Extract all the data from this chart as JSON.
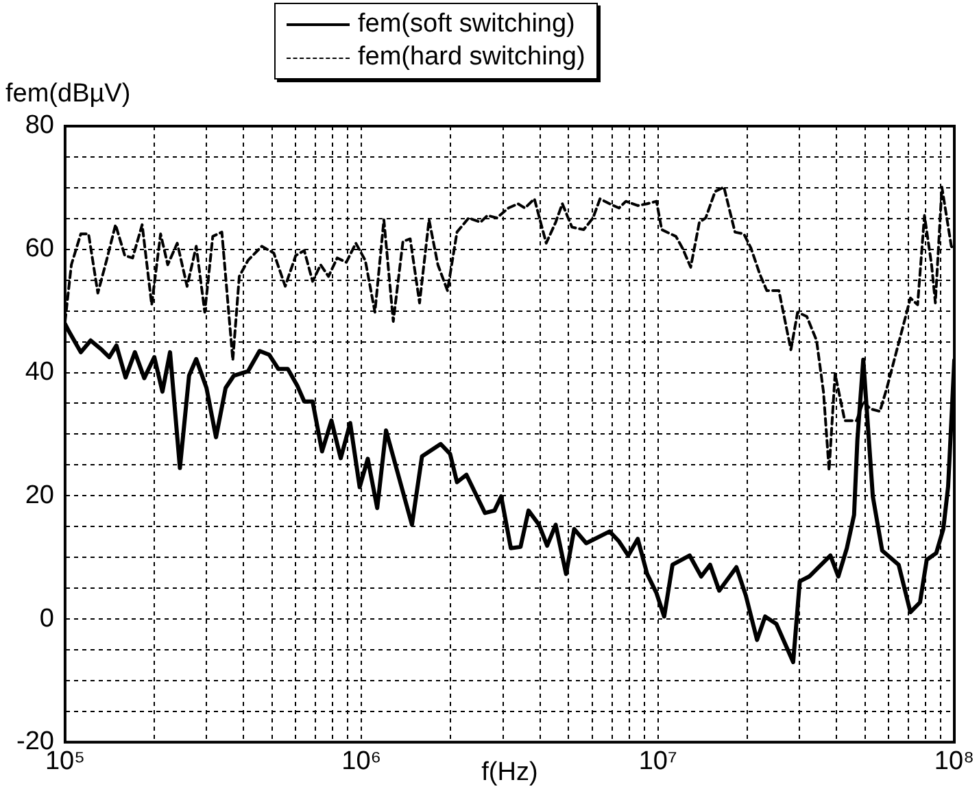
{
  "chart_data": {
    "type": "line",
    "xlabel": "f(Hz)",
    "ylabel": "fem(dBµV)",
    "log": "x",
    "xlim": [
      100000,
      100000000
    ],
    "ylim": [
      -20,
      80
    ],
    "xticks": [
      {
        "value": 100000,
        "label": "10⁵"
      },
      {
        "value": 200000,
        "label": null
      },
      {
        "value": 300000,
        "label": null
      },
      {
        "value": 400000,
        "label": null
      },
      {
        "value": 500000,
        "label": null
      },
      {
        "value": 600000,
        "label": null
      },
      {
        "value": 700000,
        "label": null
      },
      {
        "value": 800000,
        "label": null
      },
      {
        "value": 900000,
        "label": null
      },
      {
        "value": 1000000,
        "label": "10⁶"
      },
      {
        "value": 2000000,
        "label": null
      },
      {
        "value": 3000000,
        "label": null
      },
      {
        "value": 4000000,
        "label": null
      },
      {
        "value": 5000000,
        "label": null
      },
      {
        "value": 6000000,
        "label": null
      },
      {
        "value": 7000000,
        "label": null
      },
      {
        "value": 8000000,
        "label": null
      },
      {
        "value": 9000000,
        "label": null
      },
      {
        "value": 10000000,
        "label": "10⁷"
      },
      {
        "value": 20000000,
        "label": null
      },
      {
        "value": 30000000,
        "label": null
      },
      {
        "value": 40000000,
        "label": null
      },
      {
        "value": 50000000,
        "label": null
      },
      {
        "value": 60000000,
        "label": null
      },
      {
        "value": 70000000,
        "label": null
      },
      {
        "value": 80000000,
        "label": null
      },
      {
        "value": 90000000,
        "label": null
      },
      {
        "value": 100000000,
        "label": "10⁸"
      }
    ],
    "yticks": [
      -20,
      {
        "value": -15,
        "label": null
      },
      {
        "value": -10,
        "label": null
      },
      {
        "value": -5,
        "label": null
      },
      0,
      {
        "value": 5,
        "label": null
      },
      {
        "value": 10,
        "label": null
      },
      {
        "value": 15,
        "label": null
      },
      20,
      {
        "value": 25,
        "label": null
      },
      {
        "value": 30,
        "label": null
      },
      {
        "value": 35,
        "label": null
      },
      40,
      {
        "value": 45,
        "label": null
      },
      {
        "value": 50,
        "label": null
      },
      {
        "value": 55,
        "label": null
      },
      60,
      {
        "value": 65,
        "label": null
      },
      {
        "value": 70,
        "label": null
      },
      {
        "value": 75,
        "label": null
      },
      80
    ],
    "grid": true,
    "legend": "top",
    "marker": "none",
    "series": [
      {
        "name": "fem(soft switching)",
        "color": "#000000",
        "line_style": "solid",
        "x": [
          100000,
          103000,
          113000,
          122000,
          133000,
          141000,
          149000,
          160000,
          172000,
          185000,
          200000,
          213000,
          226000,
          244000,
          262000,
          277000,
          300000,
          323000,
          348000,
          371000,
          414000,
          453000,
          488000,
          524000,
          564000,
          607000,
          641000,
          684000,
          736000,
          792000,
          851000,
          916000,
          986000,
          1050000,
          1130000,
          1210000,
          1480000,
          1600000,
          1850000,
          1990000,
          2100000,
          2260000,
          2610000,
          2810000,
          2960000,
          3190000,
          3440000,
          3660000,
          3970000,
          4230000,
          4520000,
          4900000,
          5220000,
          5730000,
          6870000,
          7390000,
          7940000,
          8550000,
          9200000,
          9890000,
          10500000,
          11200000,
          12800000,
          14000000,
          15000000,
          16100000,
          18400000,
          19800000,
          21600000,
          23000000,
          25100000,
          28600000,
          30100000,
          32400000,
          38200000,
          40600000,
          43400000,
          45900000,
          47100000,
          49300000,
          53100000,
          57100000,
          64900000,
          71100000,
          76600000,
          80700000,
          86900000,
          91800000,
          95300000,
          97700000,
          100000000
        ],
        "values": [
          47.9,
          46.7,
          43.3,
          45.2,
          43.7,
          42.5,
          44.4,
          39.2,
          43.3,
          39.1,
          42.5,
          36.9,
          43.3,
          24.5,
          39.5,
          42.2,
          37.5,
          29.5,
          37.5,
          39.5,
          40.2,
          43.5,
          42.9,
          40.6,
          40.6,
          37.9,
          35.3,
          35.3,
          27.2,
          32.2,
          26.1,
          31.8,
          21.4,
          26,
          18,
          30.6,
          15.3,
          26.4,
          28.4,
          26.8,
          22.2,
          23.4,
          17.2,
          17.6,
          19.9,
          11.5,
          11.7,
          17.6,
          15.3,
          11.9,
          15.3,
          7.3,
          14.6,
          12.3,
          14.2,
          12.6,
          10.3,
          13,
          7.3,
          4.2,
          0.4,
          8.8,
          10.3,
          6.9,
          8.8,
          4.6,
          8.4,
          3.8,
          -3.4,
          0.4,
          -0.8,
          -7,
          6.1,
          6.9,
          10.3,
          6.9,
          11.5,
          16.9,
          29.1,
          42.1,
          19.9,
          11.1,
          8.8,
          1.1,
          2.7,
          9.6,
          10.7,
          14.6,
          21.5,
          32,
          42
        ]
      },
      {
        "name": "fem(hard switching)",
        "color": "#000000",
        "line_style": "dashed",
        "x": [
          100000,
          105000,
          113000,
          120000,
          129000,
          138000,
          148000,
          159000,
          169000,
          182000,
          196000,
          210000,
          222000,
          239000,
          258000,
          277000,
          296000,
          315000,
          338000,
          368000,
          387000,
          414000,
          461000,
          506000,
          553000,
          600000,
          641000,
          684000,
          728000,
          774000,
          828000,
          889000,
          957000,
          1030000,
          1110000,
          1190000,
          1280000,
          1380000,
          1460000,
          1570000,
          1690000,
          1810000,
          1950000,
          2100000,
          2300000,
          2520000,
          2660000,
          2860000,
          3130000,
          3370000,
          3560000,
          3830000,
          4200000,
          4520000,
          4760000,
          5130000,
          5620000,
          6040000,
          6380000,
          6870000,
          7390000,
          7800000,
          8550000,
          9200000,
          9890000,
          10300000,
          11500000,
          12100000,
          12900000,
          13800000,
          14500000,
          15600000,
          16700000,
          18200000,
          19500000,
          20600000,
          22100000,
          23300000,
          25600000,
          28100000,
          29600000,
          31800000,
          34300000,
          36200000,
          37800000,
          39600000,
          42700000,
          46800000,
          49300000,
          52100000,
          56100000,
          59300000,
          63700000,
          68500000,
          71100000,
          75200000,
          79300000,
          83800000,
          86300000,
          90800000,
          97700000,
          100000000
        ],
        "values": [
          48.3,
          57.5,
          62.5,
          62.5,
          52.9,
          58.2,
          64,
          59,
          58.6,
          64,
          51,
          62.5,
          57.5,
          61,
          54,
          60.5,
          49.8,
          62.1,
          62.8,
          42,
          55.6,
          58.2,
          60.5,
          59.4,
          54,
          59,
          59.8,
          54.8,
          57.5,
          55.6,
          58.6,
          57.9,
          61,
          58.2,
          49.8,
          64.8,
          48.3,
          61.3,
          61.7,
          51.3,
          64.8,
          57.5,
          53.3,
          62.8,
          65.1,
          64.4,
          65.5,
          65.1,
          66.7,
          67.4,
          66.7,
          68.2,
          61,
          64.4,
          67.4,
          63.6,
          63.2,
          65.1,
          68.2,
          67.4,
          66.7,
          67.8,
          67.1,
          67.4,
          67.8,
          63.2,
          62.1,
          60.2,
          57.1,
          64.4,
          65.1,
          69.4,
          70.1,
          62.8,
          62.5,
          60.2,
          55.9,
          53.3,
          53.3,
          43.7,
          49.8,
          49.1,
          45.2,
          36.8,
          24.1,
          39.8,
          32.2,
          32.2,
          35.3,
          34.1,
          33.7,
          37.6,
          43.3,
          49.1,
          52.1,
          51,
          65.5,
          57.5,
          51.3,
          70.1,
          60.5,
          60
        ]
      }
    ]
  }
}
